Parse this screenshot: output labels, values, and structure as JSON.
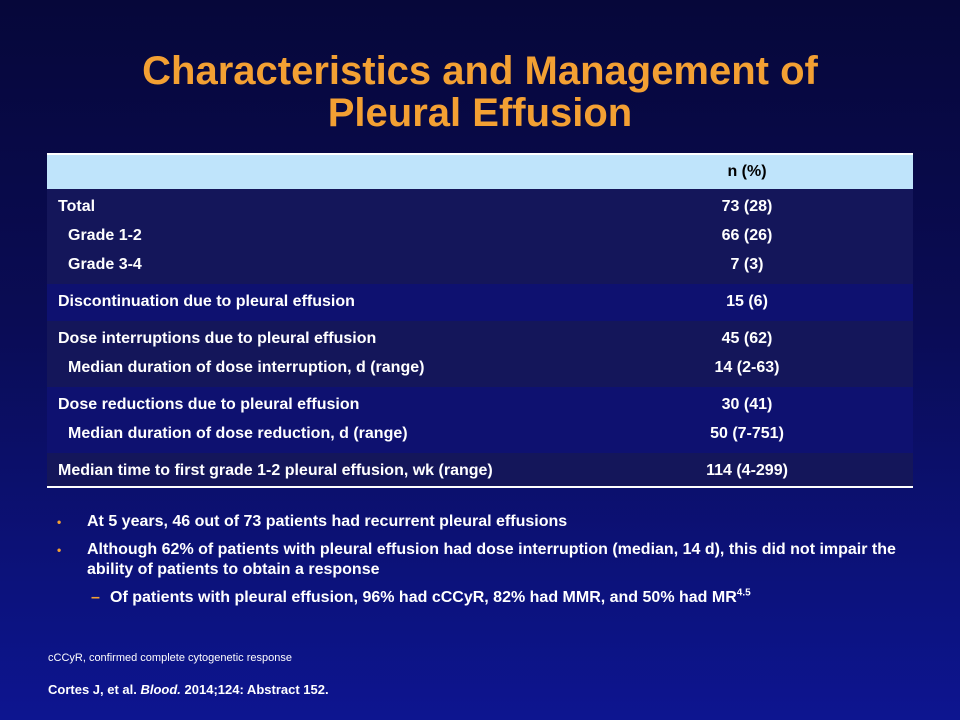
{
  "slide": {
    "title_line1": "Characteristics and Management of",
    "title_line2": "Pleural Effusion"
  },
  "table": {
    "header": {
      "col1": "",
      "col2": "n (%)"
    },
    "sections": [
      {
        "rows": [
          {
            "label": "Total",
            "value": "73 (28)"
          },
          {
            "label": "Grade 1-2",
            "value": "66 (26)"
          },
          {
            "label": "Grade 3-4",
            "value": "7 (3)"
          }
        ]
      },
      {
        "rows": [
          {
            "label": "Discontinuation due to pleural effusion",
            "value": "15 (6)"
          }
        ]
      },
      {
        "rows": [
          {
            "label": "Dose interruptions due to pleural effusion",
            "value": "45 (62)"
          },
          {
            "label": "Median duration of dose interruption, d (range)",
            "value": "14 (2-63)"
          }
        ]
      },
      {
        "rows": [
          {
            "label": "Dose reductions due to pleural effusion",
            "value": "30 (41)"
          },
          {
            "label": "Median duration of dose reduction, d (range)",
            "value": "50 (7-751)"
          }
        ]
      },
      {
        "rows": [
          {
            "label": "Median time to first grade 1-2 pleural effusion, wk (range)",
            "value": "114 (4-299)"
          }
        ]
      }
    ]
  },
  "bullets": {
    "b1": "At 5 years, 46 out of 73 patients had recurrent pleural effusions",
    "b2": "Although 62% of patients with pleural effusion had dose interruption (median, 14 d), this did not impair the ability of patients to obtain a response",
    "sub1_text": "Of patients with pleural effusion, 96% had cCCyR, 82% had MMR, and 50% had MR",
    "sub1_sup": "4.5",
    "dot": "•",
    "dash": "–"
  },
  "footnote": {
    "abbrev": "cCCyR, confirmed complete cytogenetic response",
    "cite_authors": "Cortes J, et al. ",
    "cite_journal": "Blood.",
    "cite_rest": " 2014;124: Abstract 152."
  },
  "colors": {
    "title": "#f3a033",
    "header_bg": "#bfe4fb",
    "row_dark": "#14165a",
    "row_mid": "#0e1170",
    "bullet_marker": "#f3a033"
  }
}
